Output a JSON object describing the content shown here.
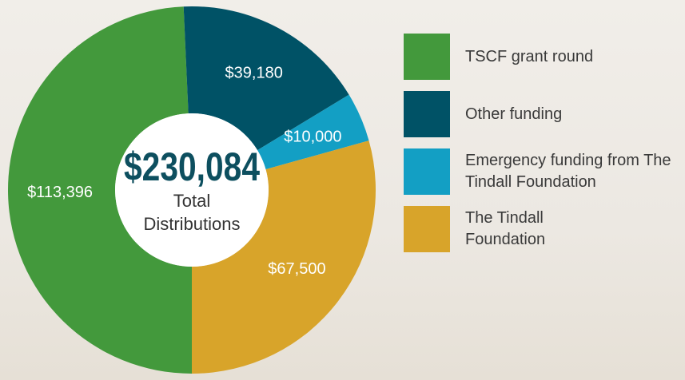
{
  "chart_data": {
    "type": "donut",
    "categories": [
      "TSCF grant round",
      "Other funding",
      "Emergency funding from The Tindall Foundation",
      "The Tindall Foundation"
    ],
    "values": [
      113396,
      39180,
      10000,
      67500
    ],
    "value_labels": [
      "$113,396",
      "$39,180",
      "$10,000",
      "$67,500"
    ],
    "colors": [
      "#43993c",
      "#005266",
      "#139fc4",
      "#d8a42a"
    ],
    "total_label": "$230,084",
    "center_label": [
      "Total",
      "Distributions"
    ]
  }
}
